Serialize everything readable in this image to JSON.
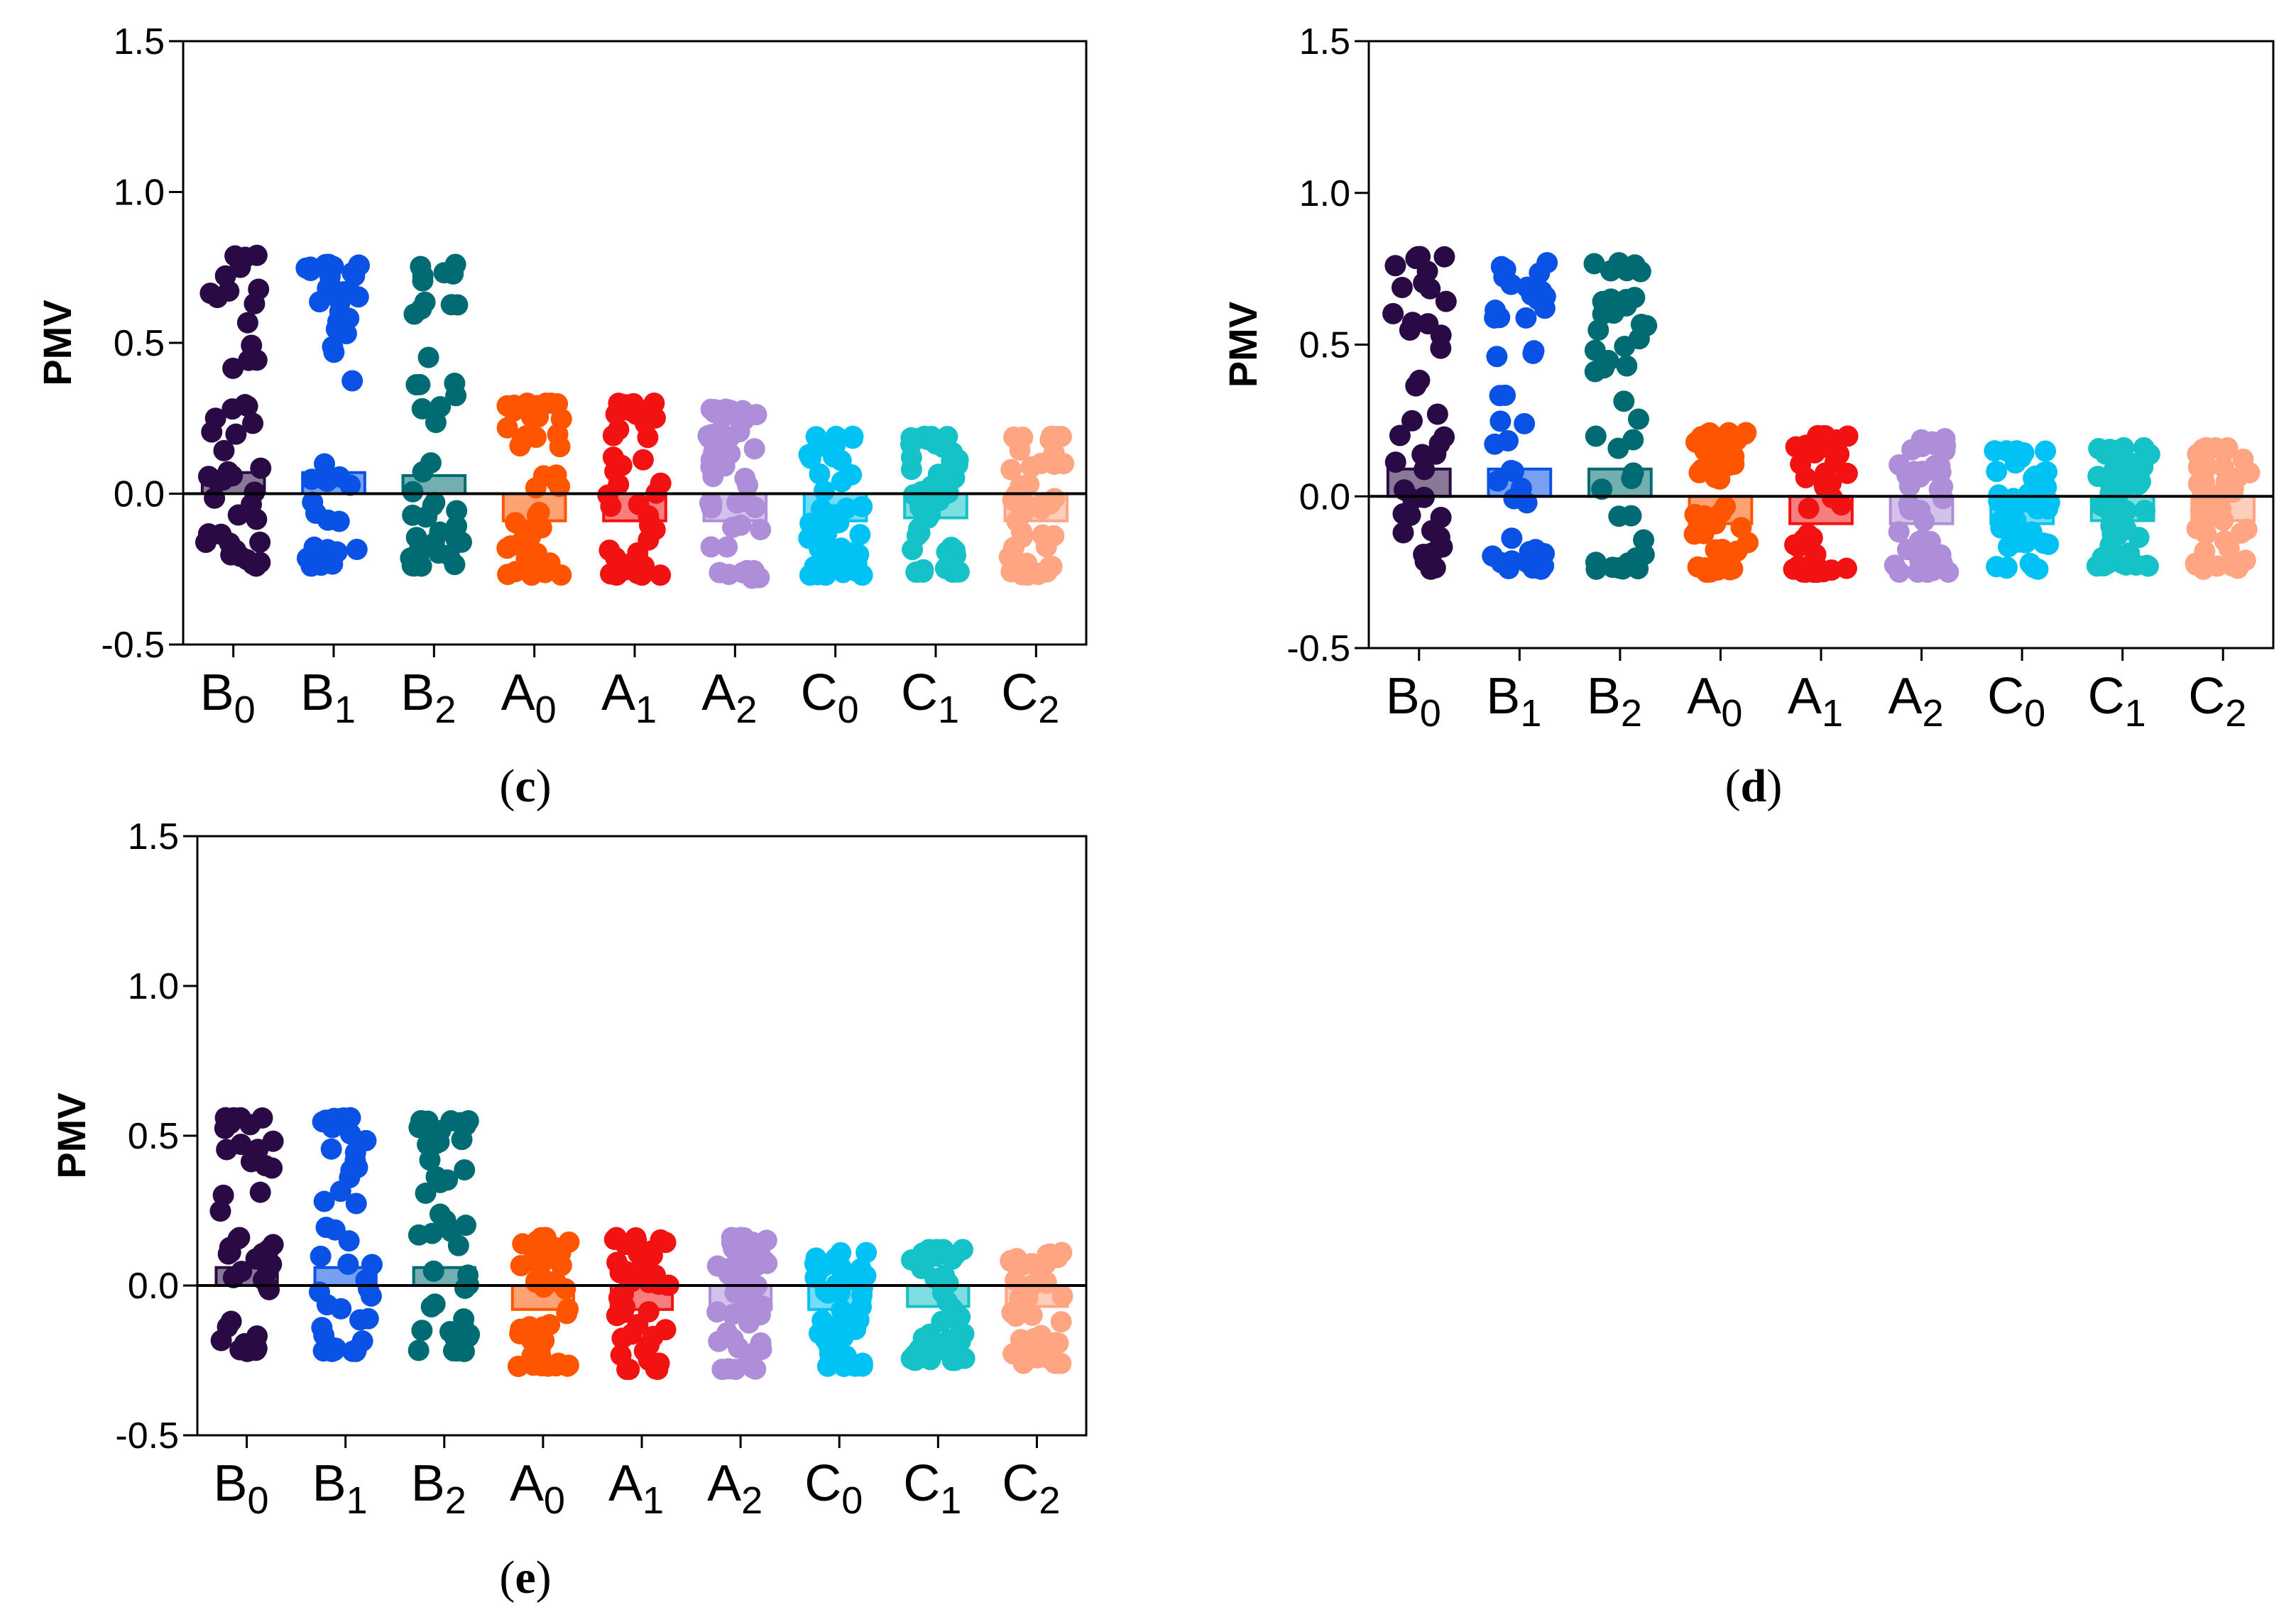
{
  "colors": {
    "B0": "#2a0a45",
    "B1": "#0a52e6",
    "B2": "#006b72",
    "A0": "#ff5500",
    "A1": "#f21212",
    "A2": "#ae8ed8",
    "C0": "#00c2f5",
    "C1": "#14c2c8",
    "C2": "#ffa582"
  },
  "chart_data": [
    {
      "panel": "c",
      "type": "bar",
      "ylabel": "PMV",
      "ylim": [
        -0.5,
        1.5
      ],
      "yticks": [
        "-0.5",
        "0.0",
        "0.5",
        "1.0",
        "1.5"
      ],
      "categories": [
        {
          "main": "B",
          "sub": "0"
        },
        {
          "main": "B",
          "sub": "1"
        },
        {
          "main": "B",
          "sub": "2"
        },
        {
          "main": "A",
          "sub": "0"
        },
        {
          "main": "A",
          "sub": "1"
        },
        {
          "main": "A",
          "sub": "2"
        },
        {
          "main": "C",
          "sub": "0"
        },
        {
          "main": "C",
          "sub": "1"
        },
        {
          "main": "C",
          "sub": "2"
        }
      ],
      "keys": [
        "B0",
        "B1",
        "B2",
        "A0",
        "A1",
        "A2",
        "C0",
        "C1",
        "C2"
      ],
      "bar_means": [
        0.07,
        0.07,
        0.06,
        -0.09,
        -0.09,
        -0.09,
        -0.09,
        -0.08,
        -0.09
      ],
      "point_ranges": [
        [
          -0.24,
          0.79
        ],
        [
          -0.24,
          0.76
        ],
        [
          -0.24,
          0.76
        ],
        [
          -0.27,
          0.3
        ],
        [
          -0.27,
          0.3
        ],
        [
          -0.28,
          0.28
        ],
        [
          -0.27,
          0.19
        ],
        [
          -0.26,
          0.19
        ],
        [
          -0.27,
          0.19
        ]
      ]
    },
    {
      "panel": "d",
      "type": "bar",
      "ylabel": "PMV",
      "ylim": [
        -0.5,
        1.5
      ],
      "yticks": [
        "-0.5",
        "0.0",
        "0.5",
        "1.0",
        "1.5"
      ],
      "categories": [
        {
          "main": "B",
          "sub": "0"
        },
        {
          "main": "B",
          "sub": "1"
        },
        {
          "main": "B",
          "sub": "2"
        },
        {
          "main": "A",
          "sub": "0"
        },
        {
          "main": "A",
          "sub": "1"
        },
        {
          "main": "A",
          "sub": "2"
        },
        {
          "main": "C",
          "sub": "0"
        },
        {
          "main": "C",
          "sub": "1"
        },
        {
          "main": "C",
          "sub": "2"
        }
      ],
      "keys": [
        "B0",
        "B1",
        "B2",
        "A0",
        "A1",
        "A2",
        "C0",
        "C1",
        "C2"
      ],
      "bar_means": [
        0.09,
        0.09,
        0.09,
        -0.09,
        -0.09,
        -0.09,
        -0.09,
        -0.08,
        -0.08
      ],
      "point_ranges": [
        [
          -0.24,
          0.79
        ],
        [
          -0.24,
          0.77
        ],
        [
          -0.24,
          0.77
        ],
        [
          -0.25,
          0.21
        ],
        [
          -0.25,
          0.2
        ],
        [
          -0.25,
          0.19
        ],
        [
          -0.24,
          0.15
        ],
        [
          -0.23,
          0.16
        ],
        [
          -0.24,
          0.16
        ]
      ]
    },
    {
      "panel": "e",
      "type": "bar",
      "ylabel": "PMV",
      "ylim": [
        -0.5,
        1.5
      ],
      "yticks": [
        "-0.5",
        "0.0",
        "0.5",
        "1.0",
        "1.5"
      ],
      "categories": [
        {
          "main": "B",
          "sub": "0"
        },
        {
          "main": "B",
          "sub": "1"
        },
        {
          "main": "B",
          "sub": "2"
        },
        {
          "main": "A",
          "sub": "0"
        },
        {
          "main": "A",
          "sub": "1"
        },
        {
          "main": "A",
          "sub": "2"
        },
        {
          "main": "C",
          "sub": "0"
        },
        {
          "main": "C",
          "sub": "1"
        },
        {
          "main": "C",
          "sub": "2"
        }
      ],
      "keys": [
        "B0",
        "B1",
        "B2",
        "A0",
        "A1",
        "A2",
        "C0",
        "C1",
        "C2"
      ],
      "bar_means": [
        0.06,
        0.06,
        0.06,
        -0.08,
        -0.08,
        -0.08,
        -0.08,
        -0.07,
        -0.07
      ],
      "point_ranges": [
        [
          -0.22,
          0.56
        ],
        [
          -0.22,
          0.56
        ],
        [
          -0.22,
          0.55
        ],
        [
          -0.27,
          0.16
        ],
        [
          -0.28,
          0.16
        ],
        [
          -0.28,
          0.16
        ],
        [
          -0.27,
          0.11
        ],
        [
          -0.25,
          0.12
        ],
        [
          -0.26,
          0.11
        ]
      ]
    }
  ],
  "captions": {
    "c": "c",
    "d": "d",
    "e": "e"
  }
}
